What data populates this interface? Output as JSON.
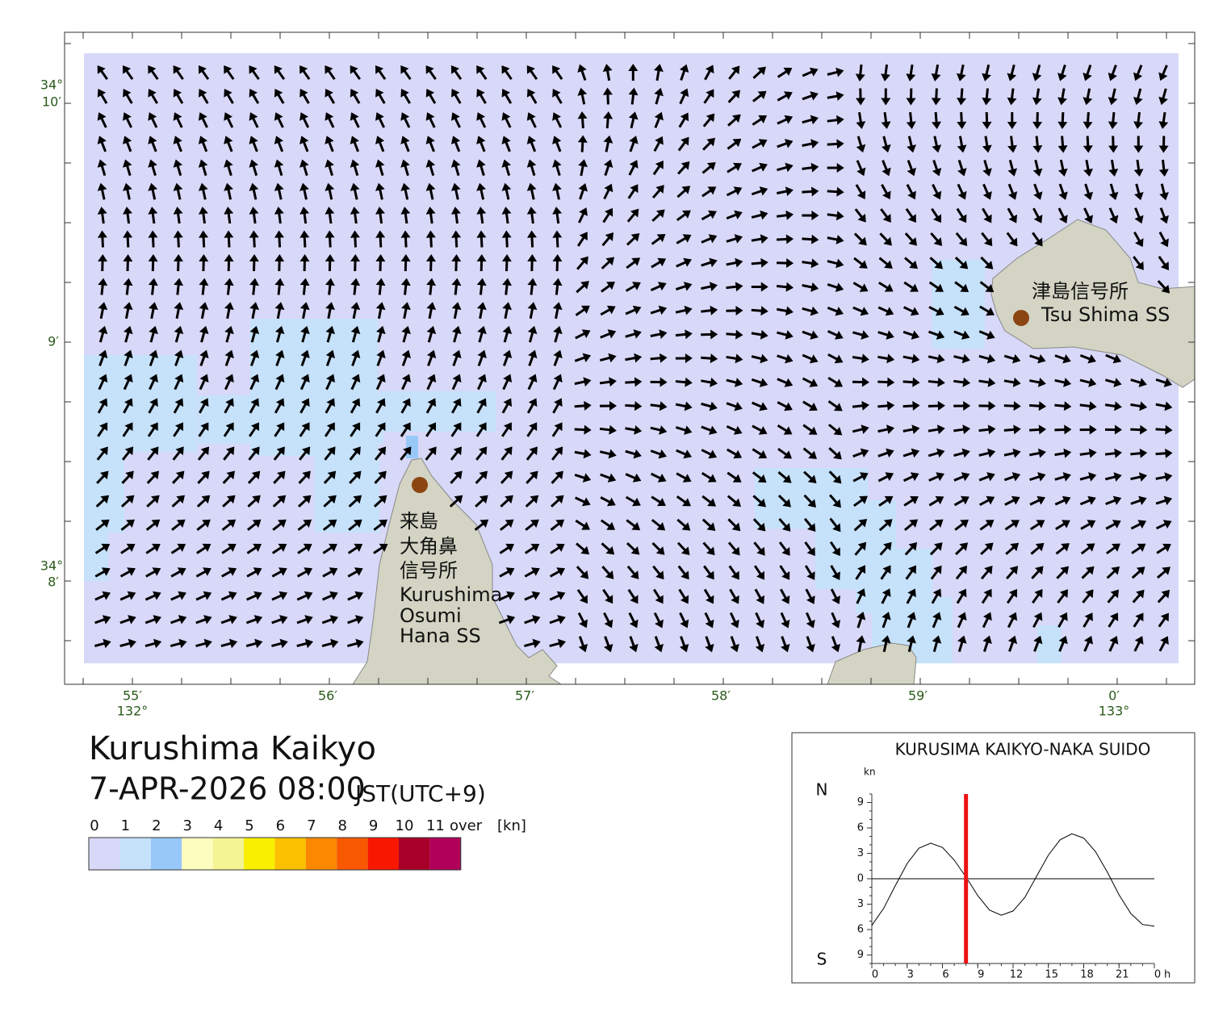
{
  "map": {
    "lat_labels": [
      {
        "deg": "34°",
        "min": "10′"
      },
      {
        "min": "9′"
      },
      {
        "deg": "34°",
        "min": "8′"
      }
    ],
    "lon_labels": [
      {
        "min": "55′",
        "deg": "132°"
      },
      {
        "min": "56′"
      },
      {
        "min": "57′"
      },
      {
        "min": "58′"
      },
      {
        "min": "59′"
      },
      {
        "min": "0′",
        "deg": "133°"
      }
    ],
    "stations": [
      {
        "name_ja": [
          "津島信号所"
        ],
        "name_en": [
          "Tsu Shima SS"
        ]
      },
      {
        "name_ja": [
          "来島",
          "大角鼻",
          "信号所"
        ],
        "name_en": [
          "Kurushima",
          "Osumi",
          "Hana SS"
        ]
      }
    ]
  },
  "title": "Kurushima Kaikyo",
  "datetime": "7-APR-2026 08:00",
  "timezone": "JST(UTC+9)",
  "legend": {
    "labels": [
      "0",
      "1",
      "2",
      "3",
      "4",
      "5",
      "6",
      "7",
      "8",
      "9",
      "10",
      "11",
      "over",
      "[kn]"
    ],
    "colors": [
      "#d8d8f8",
      "#c6e2fb",
      "#98c8f8",
      "#fdfdc0",
      "#f4f494",
      "#f8f000",
      "#fbc000",
      "#fb8800",
      "#f85800",
      "#f81800",
      "#a80028",
      "#b0005a"
    ]
  },
  "chart_data": {
    "type": "line",
    "title": "KURUSIMA KAIKYO-NAKA SUIDO",
    "y_unit": "kn",
    "x_unit": "h",
    "north_label": "N",
    "south_label": "S",
    "x": [
      0,
      1,
      2,
      3,
      4,
      5,
      6,
      7,
      8,
      9,
      10,
      11,
      12,
      13,
      14,
      15,
      16,
      17,
      18,
      19,
      20,
      21,
      22,
      23,
      24
    ],
    "values": [
      -5.5,
      -3.5,
      -0.8,
      1.8,
      3.6,
      4.2,
      3.7,
      2.2,
      0.2,
      -2.0,
      -3.7,
      -4.3,
      -3.8,
      -2.2,
      0.3,
      2.8,
      4.6,
      5.3,
      4.8,
      3.2,
      0.8,
      -1.9,
      -4.1,
      -5.4,
      -5.6
    ],
    "color": "#000000",
    "xlim": [
      0,
      24
    ],
    "xticks": [
      0,
      3,
      6,
      9,
      12,
      15,
      18,
      21,
      {
        "value": 24,
        "label": "0"
      }
    ],
    "ylim": [
      -10,
      10
    ],
    "yticks": [
      9,
      6,
      3,
      0,
      {
        "value": -3,
        "label": "3"
      },
      {
        "value": -6,
        "label": "6"
      },
      {
        "value": -9,
        "label": "9"
      }
    ],
    "current_time": 8,
    "current_time_color": "#ee1111"
  }
}
